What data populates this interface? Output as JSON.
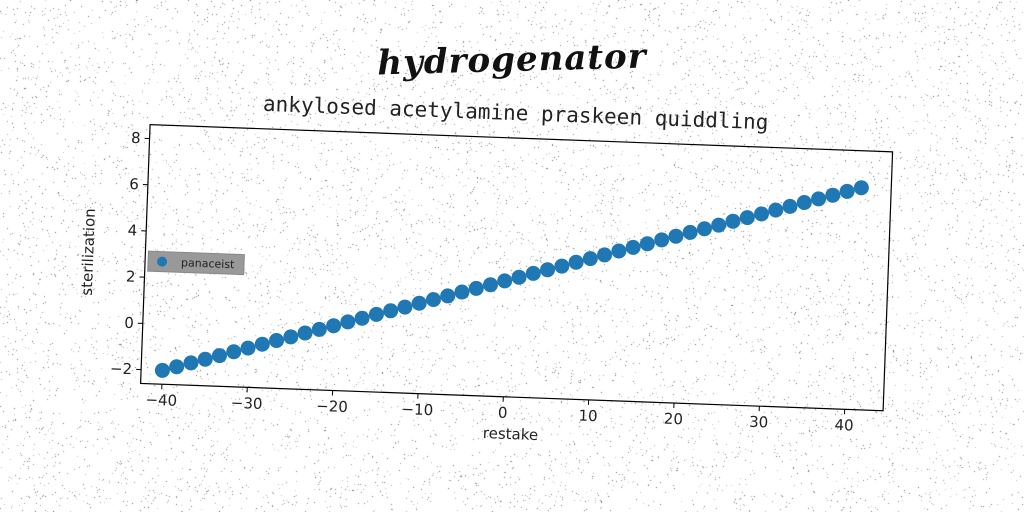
{
  "figure": {
    "suptitle": "hydrogenator"
  },
  "chart_data": {
    "type": "scatter",
    "title": "ankylosed acetylamine praskeen quiddling",
    "xlabel": "restake",
    "ylabel": "sterilization",
    "xlim": [
      -42.5,
      44.5
    ],
    "ylim": [
      -2.6,
      8.6
    ],
    "xticks": [
      -40,
      -30,
      -20,
      -10,
      0,
      10,
      20,
      30,
      40
    ],
    "xtick_labels": [
      "−40",
      "−30",
      "−20",
      "−10",
      "0",
      "10",
      "20",
      "30",
      "40"
    ],
    "yticks": [
      -2,
      0,
      2,
      4,
      6,
      8
    ],
    "ytick_labels": [
      "−2",
      "0",
      "2",
      "4",
      "6",
      "8"
    ],
    "grid": false,
    "legend": {
      "placement": "center-left",
      "entries": [
        "panaceist"
      ]
    },
    "series": [
      {
        "name": "panaceist",
        "color": "#1f77b4",
        "x": [
          -40.0,
          -38.35,
          -36.69,
          -35.04,
          -33.39,
          -31.73,
          -30.08,
          -28.43,
          -26.78,
          -25.12,
          -23.47,
          -21.82,
          -20.16,
          -18.51,
          -16.86,
          -15.2,
          -13.55,
          -11.9,
          -10.24,
          -8.59,
          -6.94,
          -5.29,
          -3.63,
          -1.98,
          -0.33,
          1.33,
          2.98,
          4.63,
          6.29,
          7.94,
          9.59,
          11.24,
          12.9,
          14.55,
          16.2,
          17.86,
          19.51,
          21.16,
          22.82,
          24.47,
          26.12,
          27.78,
          29.43,
          31.08,
          32.73,
          34.39,
          36.04,
          37.69,
          39.35,
          41.0
        ],
        "y": [
          -2.0,
          -1.82,
          -1.63,
          -1.45,
          -1.27,
          -1.08,
          -0.9,
          -0.71,
          -0.53,
          -0.35,
          -0.16,
          0.02,
          0.2,
          0.39,
          0.57,
          0.76,
          0.94,
          1.12,
          1.31,
          1.49,
          1.67,
          1.86,
          2.04,
          2.22,
          2.41,
          2.59,
          2.78,
          2.96,
          3.14,
          3.33,
          3.51,
          3.69,
          3.88,
          4.06,
          4.24,
          4.43,
          4.61,
          4.8,
          4.98,
          5.16,
          5.35,
          5.53,
          5.71,
          5.9,
          6.08,
          6.27,
          6.45,
          6.63,
          6.82,
          7.0
        ]
      }
    ]
  }
}
